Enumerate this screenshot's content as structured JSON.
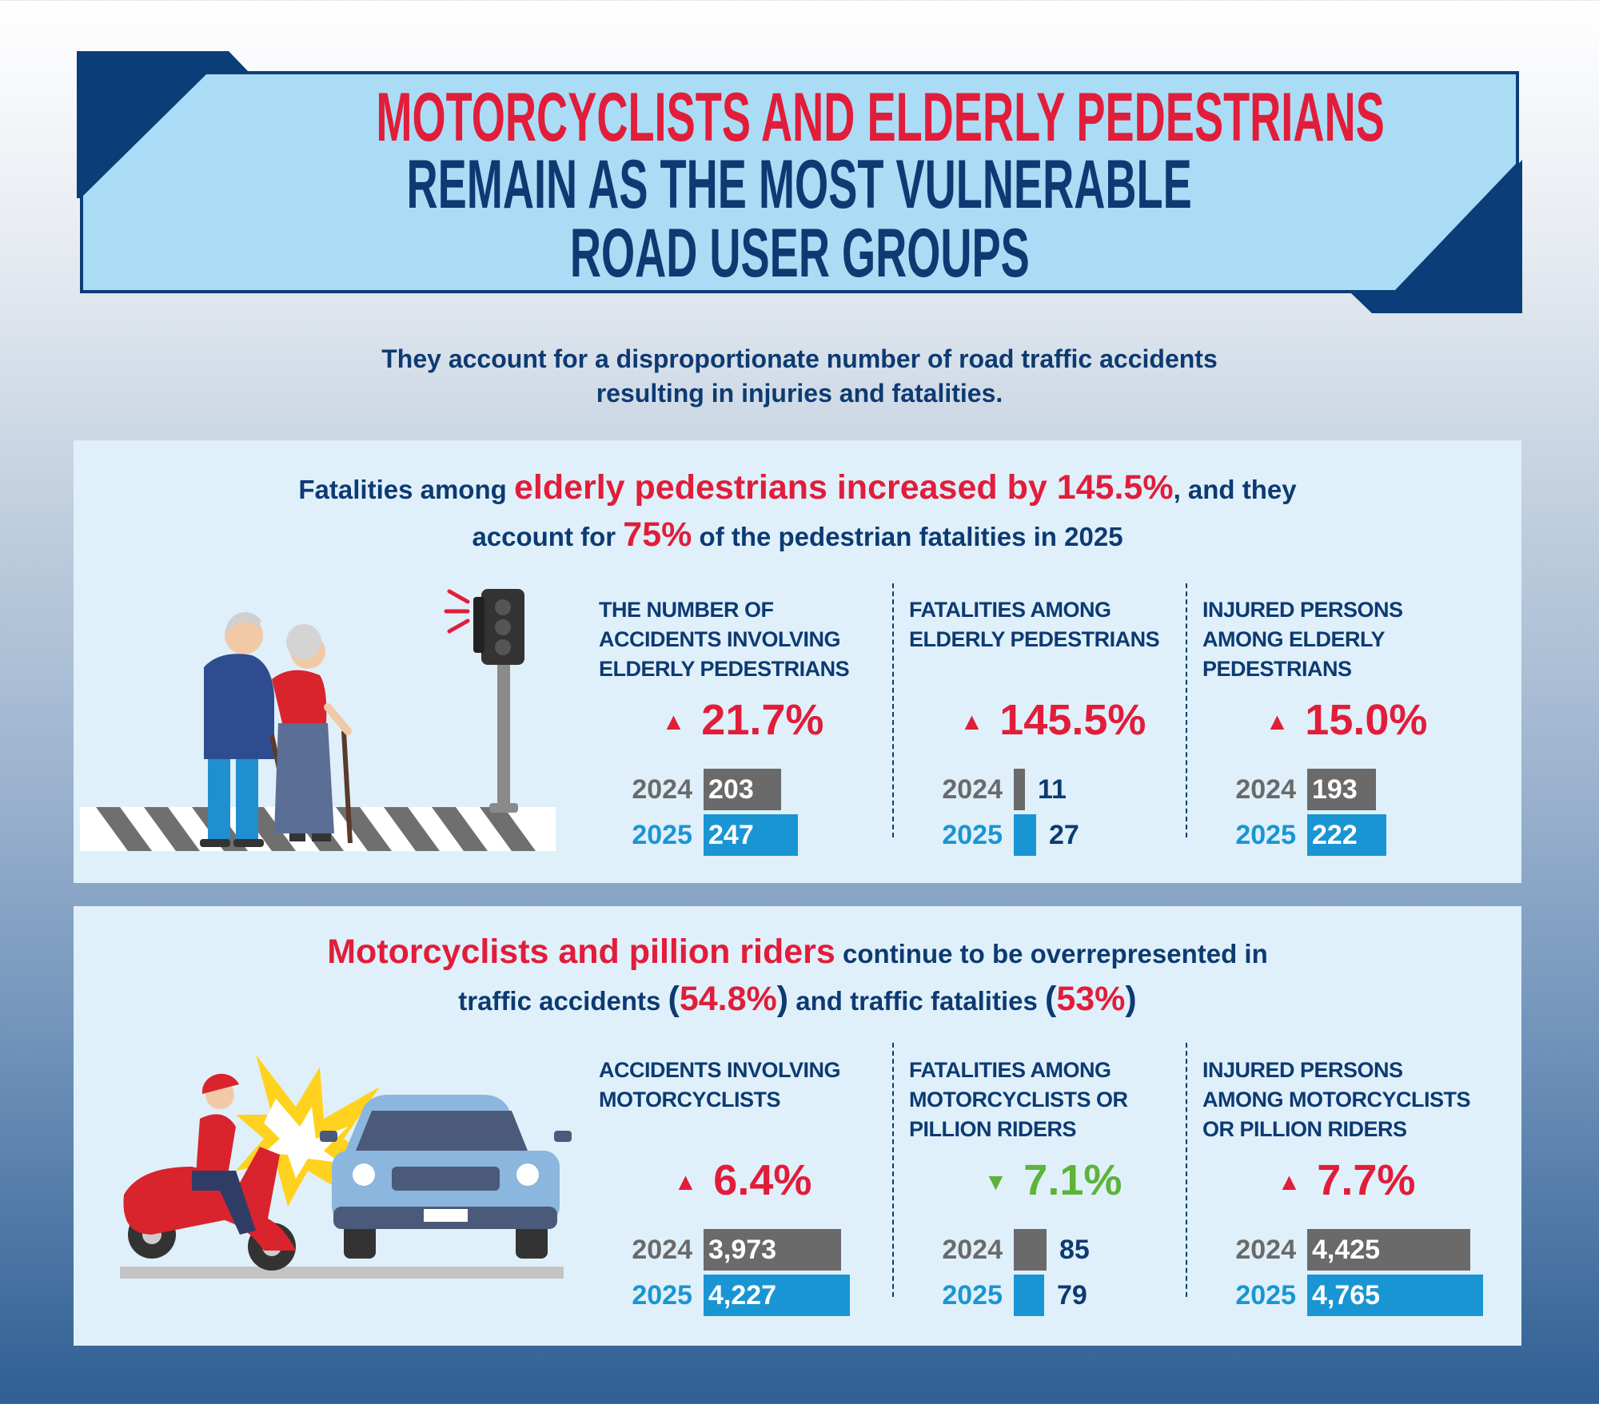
{
  "header": {
    "title_line1": "MOTORCYCLISTS AND ELDERLY PEDESTRIANS",
    "title_line2": "REMAIN AS THE MOST VULNERABLE",
    "title_line3": "ROAD USER GROUPS"
  },
  "subtitle": {
    "line1": "They account for a disproportionate number of road traffic accidents",
    "line2": "resulting in injuries and fatalities."
  },
  "colors": {
    "red": "#e11d3a",
    "navy": "#0d3a72",
    "blue_2025": "#1a95d3",
    "grey_2024": "#6a6a6a",
    "green_down": "#5db33a",
    "panel_bg": "#dff0fa"
  },
  "elderly": {
    "headline": {
      "a": "Fatalities among ",
      "b": "elderly pedestrians increased by 145.5%",
      "c": ", and they",
      "d": "account for ",
      "e": "75%",
      "f": " of the pedestrian fatalities in 2025"
    },
    "illustration": "elderly-couple-crosswalk-traffic-light",
    "stats": [
      {
        "title": [
          "THE NUMBER OF",
          "ACCIDENTS INVOLVING",
          "ELDERLY PEDESTRIANS"
        ],
        "direction": "up",
        "change": "21.7%",
        "rows": [
          {
            "year": "2024",
            "value": 203,
            "label": "203"
          },
          {
            "year": "2025",
            "value": 247,
            "label": "247"
          }
        ]
      },
      {
        "title": [
          "FATALITIES AMONG",
          "ELDERLY PEDESTRIANS",
          ""
        ],
        "direction": "up",
        "change": "145.5%",
        "rows": [
          {
            "year": "2024",
            "value": 11,
            "label": "11"
          },
          {
            "year": "2025",
            "value": 27,
            "label": "27"
          }
        ]
      },
      {
        "title": [
          "INJURED PERSONS",
          "AMONG ELDERLY",
          "PEDESTRIANS"
        ],
        "direction": "up",
        "change": "15.0%",
        "rows": [
          {
            "year": "2024",
            "value": 193,
            "label": "193"
          },
          {
            "year": "2025",
            "value": 222,
            "label": "222"
          }
        ]
      }
    ]
  },
  "moto": {
    "headline": {
      "a": "Motorcyclists and pillion riders",
      "b": " continue to be overrepresented in",
      "c": "traffic accidents ",
      "d": "(",
      "e": "54.8%",
      "f": ")",
      "g": " and traffic fatalities ",
      "h": "(",
      "i": "53%",
      "j": ")"
    },
    "illustration": "scooter-rider-colliding-with-car",
    "stats": [
      {
        "title": [
          "ACCIDENTS INVOLVING",
          "MOTORCYCLISTS",
          ""
        ],
        "direction": "up",
        "change": "6.4%",
        "rows": [
          {
            "year": "2024",
            "value": 3973,
            "label": "3,973"
          },
          {
            "year": "2025",
            "value": 4227,
            "label": "4,227"
          }
        ]
      },
      {
        "title": [
          "FATALITIES AMONG",
          "MOTORCYCLISTS OR",
          "PILLION RIDERS"
        ],
        "direction": "down",
        "change": "7.1%",
        "rows": [
          {
            "year": "2024",
            "value": 85,
            "label": "85"
          },
          {
            "year": "2025",
            "value": 79,
            "label": "79"
          }
        ]
      },
      {
        "title": [
          "INJURED PERSONS",
          "AMONG MOTORCYCLISTS",
          "OR PILLION RIDERS"
        ],
        "direction": "up",
        "change": "7.7%",
        "rows": [
          {
            "year": "2024",
            "value": 4425,
            "label": "4,425"
          },
          {
            "year": "2025",
            "value": 4765,
            "label": "4,765"
          }
        ]
      }
    ]
  }
}
